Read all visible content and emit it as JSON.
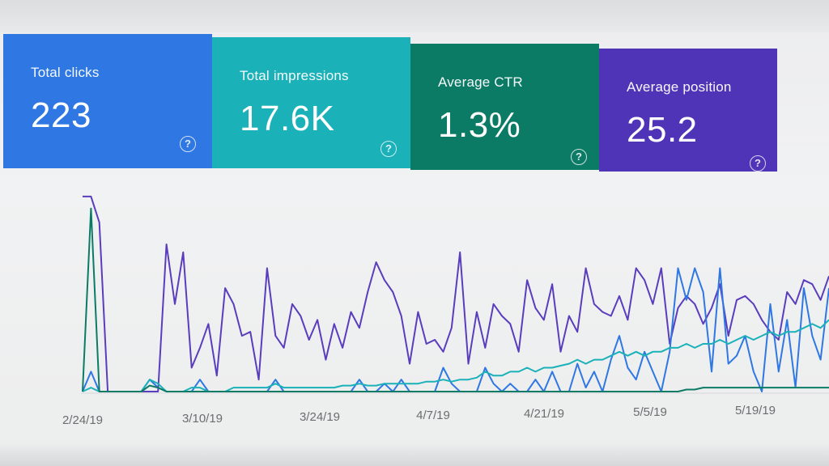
{
  "cards": [
    {
      "label": "Total clicks",
      "value": "223",
      "color": "#2f77e3",
      "help_icon": "question-circle-icon"
    },
    {
      "label": "Total impressions",
      "value": "17.6K",
      "color": "#1ab1b9",
      "help_icon": "question-circle-icon"
    },
    {
      "label": "Average CTR",
      "value": "1.3%",
      "color": "#0c7b66",
      "help_icon": "question-circle-icon"
    },
    {
      "label": "Average position",
      "value": "25.2",
      "color": "#4f34b8",
      "help_icon": "question-circle-icon"
    }
  ],
  "chart_data": {
    "type": "line",
    "x_tick_labels": [
      "2/24/19",
      "3/10/19",
      "3/24/19",
      "4/7/19",
      "4/21/19",
      "5/5/19",
      "5/19/19"
    ],
    "grid": false,
    "series": [
      {
        "color": "#5a3dbd",
        "values": [
          0.98,
          0.98,
          0.85,
          0.0,
          0.0,
          0.0,
          0.0,
          0.0,
          0.0,
          0.0,
          0.74,
          0.44,
          0.7,
          0.12,
          0.22,
          0.34,
          0.08,
          0.52,
          0.44,
          0.28,
          0.3,
          0.06,
          0.62,
          0.28,
          0.22,
          0.44,
          0.38,
          0.26,
          0.36,
          0.16,
          0.34,
          0.22,
          0.4,
          0.32,
          0.5,
          0.65,
          0.56,
          0.5,
          0.38,
          0.14,
          0.4,
          0.24,
          0.26,
          0.2,
          0.32,
          0.7,
          0.14,
          0.4,
          0.22,
          0.44,
          0.38,
          0.34,
          0.2,
          0.56,
          0.42,
          0.36,
          0.54,
          0.2,
          0.38,
          0.3,
          0.62,
          0.44,
          0.4,
          0.38,
          0.48,
          0.36,
          0.62,
          0.56,
          0.44,
          0.62,
          0.24,
          0.42,
          0.48,
          0.44,
          0.34,
          0.42,
          0.54,
          0.28,
          0.46,
          0.48,
          0.44,
          0.36,
          0.3,
          0.26,
          0.5,
          0.44,
          0.56,
          0.54,
          0.46,
          0.58
        ]
      },
      {
        "color": "#2f77e3",
        "values": [
          0.0,
          0.1,
          0.0,
          0.0,
          0.0,
          0.0,
          0.0,
          0.0,
          0.06,
          0.02,
          0.0,
          0.0,
          0.0,
          0.0,
          0.06,
          0.0,
          0.0,
          0.0,
          0.0,
          0.0,
          0.0,
          0.0,
          0.0,
          0.06,
          0.0,
          0.0,
          0.0,
          0.0,
          0.0,
          0.0,
          0.0,
          0.0,
          0.0,
          0.06,
          0.0,
          0.0,
          0.04,
          0.0,
          0.06,
          0.0,
          0.0,
          0.0,
          0.0,
          0.12,
          0.04,
          0.0,
          0.0,
          0.0,
          0.12,
          0.04,
          0.0,
          0.04,
          0.0,
          0.0,
          0.06,
          0.0,
          0.1,
          0.0,
          0.0,
          0.14,
          0.02,
          0.1,
          0.0,
          0.16,
          0.28,
          0.12,
          0.06,
          0.2,
          0.1,
          0.0,
          0.2,
          0.62,
          0.46,
          0.62,
          0.5,
          0.1,
          0.62,
          0.14,
          0.18,
          0.28,
          0.1,
          0.0,
          0.44,
          0.1,
          0.36,
          0.02,
          0.52,
          0.28,
          0.16,
          0.52
        ]
      },
      {
        "color": "#1ab1b9",
        "values": [
          0.0,
          0.02,
          0.0,
          0.0,
          0.0,
          0.0,
          0.0,
          0.0,
          0.06,
          0.04,
          0.0,
          0.0,
          0.0,
          0.02,
          0.02,
          0.0,
          0.0,
          0.0,
          0.02,
          0.02,
          0.02,
          0.02,
          0.02,
          0.04,
          0.02,
          0.02,
          0.02,
          0.02,
          0.02,
          0.02,
          0.02,
          0.03,
          0.03,
          0.04,
          0.03,
          0.03,
          0.04,
          0.04,
          0.04,
          0.04,
          0.04,
          0.05,
          0.05,
          0.06,
          0.05,
          0.06,
          0.06,
          0.07,
          0.1,
          0.08,
          0.08,
          0.1,
          0.1,
          0.12,
          0.1,
          0.12,
          0.12,
          0.13,
          0.14,
          0.16,
          0.14,
          0.16,
          0.16,
          0.18,
          0.2,
          0.18,
          0.2,
          0.18,
          0.2,
          0.2,
          0.22,
          0.22,
          0.24,
          0.22,
          0.24,
          0.24,
          0.26,
          0.24,
          0.26,
          0.28,
          0.26,
          0.28,
          0.3,
          0.28,
          0.3,
          0.3,
          0.32,
          0.34,
          0.32,
          0.36
        ]
      },
      {
        "color": "#0c7b66",
        "values": [
          0.0,
          0.92,
          0.0,
          0.0,
          0.0,
          0.0,
          0.0,
          0.0,
          0.03,
          0.02,
          0.0,
          0.0,
          0.0,
          0.0,
          0.0,
          0.0,
          0.0,
          0.0,
          0.0,
          0.0,
          0.0,
          0.0,
          0.0,
          0.0,
          0.0,
          0.0,
          0.0,
          0.0,
          0.0,
          0.0,
          0.0,
          0.0,
          0.0,
          0.0,
          0.0,
          0.0,
          0.0,
          0.0,
          0.0,
          0.0,
          0.0,
          0.0,
          0.0,
          0.0,
          0.0,
          0.0,
          0.0,
          0.0,
          0.0,
          0.0,
          0.0,
          0.0,
          0.0,
          0.0,
          0.0,
          0.0,
          0.0,
          0.0,
          0.0,
          0.0,
          0.0,
          0.0,
          0.0,
          0.0,
          0.0,
          0.0,
          0.0,
          0.0,
          0.0,
          0.0,
          0.0,
          0.0,
          0.01,
          0.01,
          0.02,
          0.02,
          0.02,
          0.02,
          0.02,
          0.02,
          0.02,
          0.02,
          0.02,
          0.02,
          0.02,
          0.02,
          0.02,
          0.02,
          0.02,
          0.02
        ]
      }
    ]
  }
}
